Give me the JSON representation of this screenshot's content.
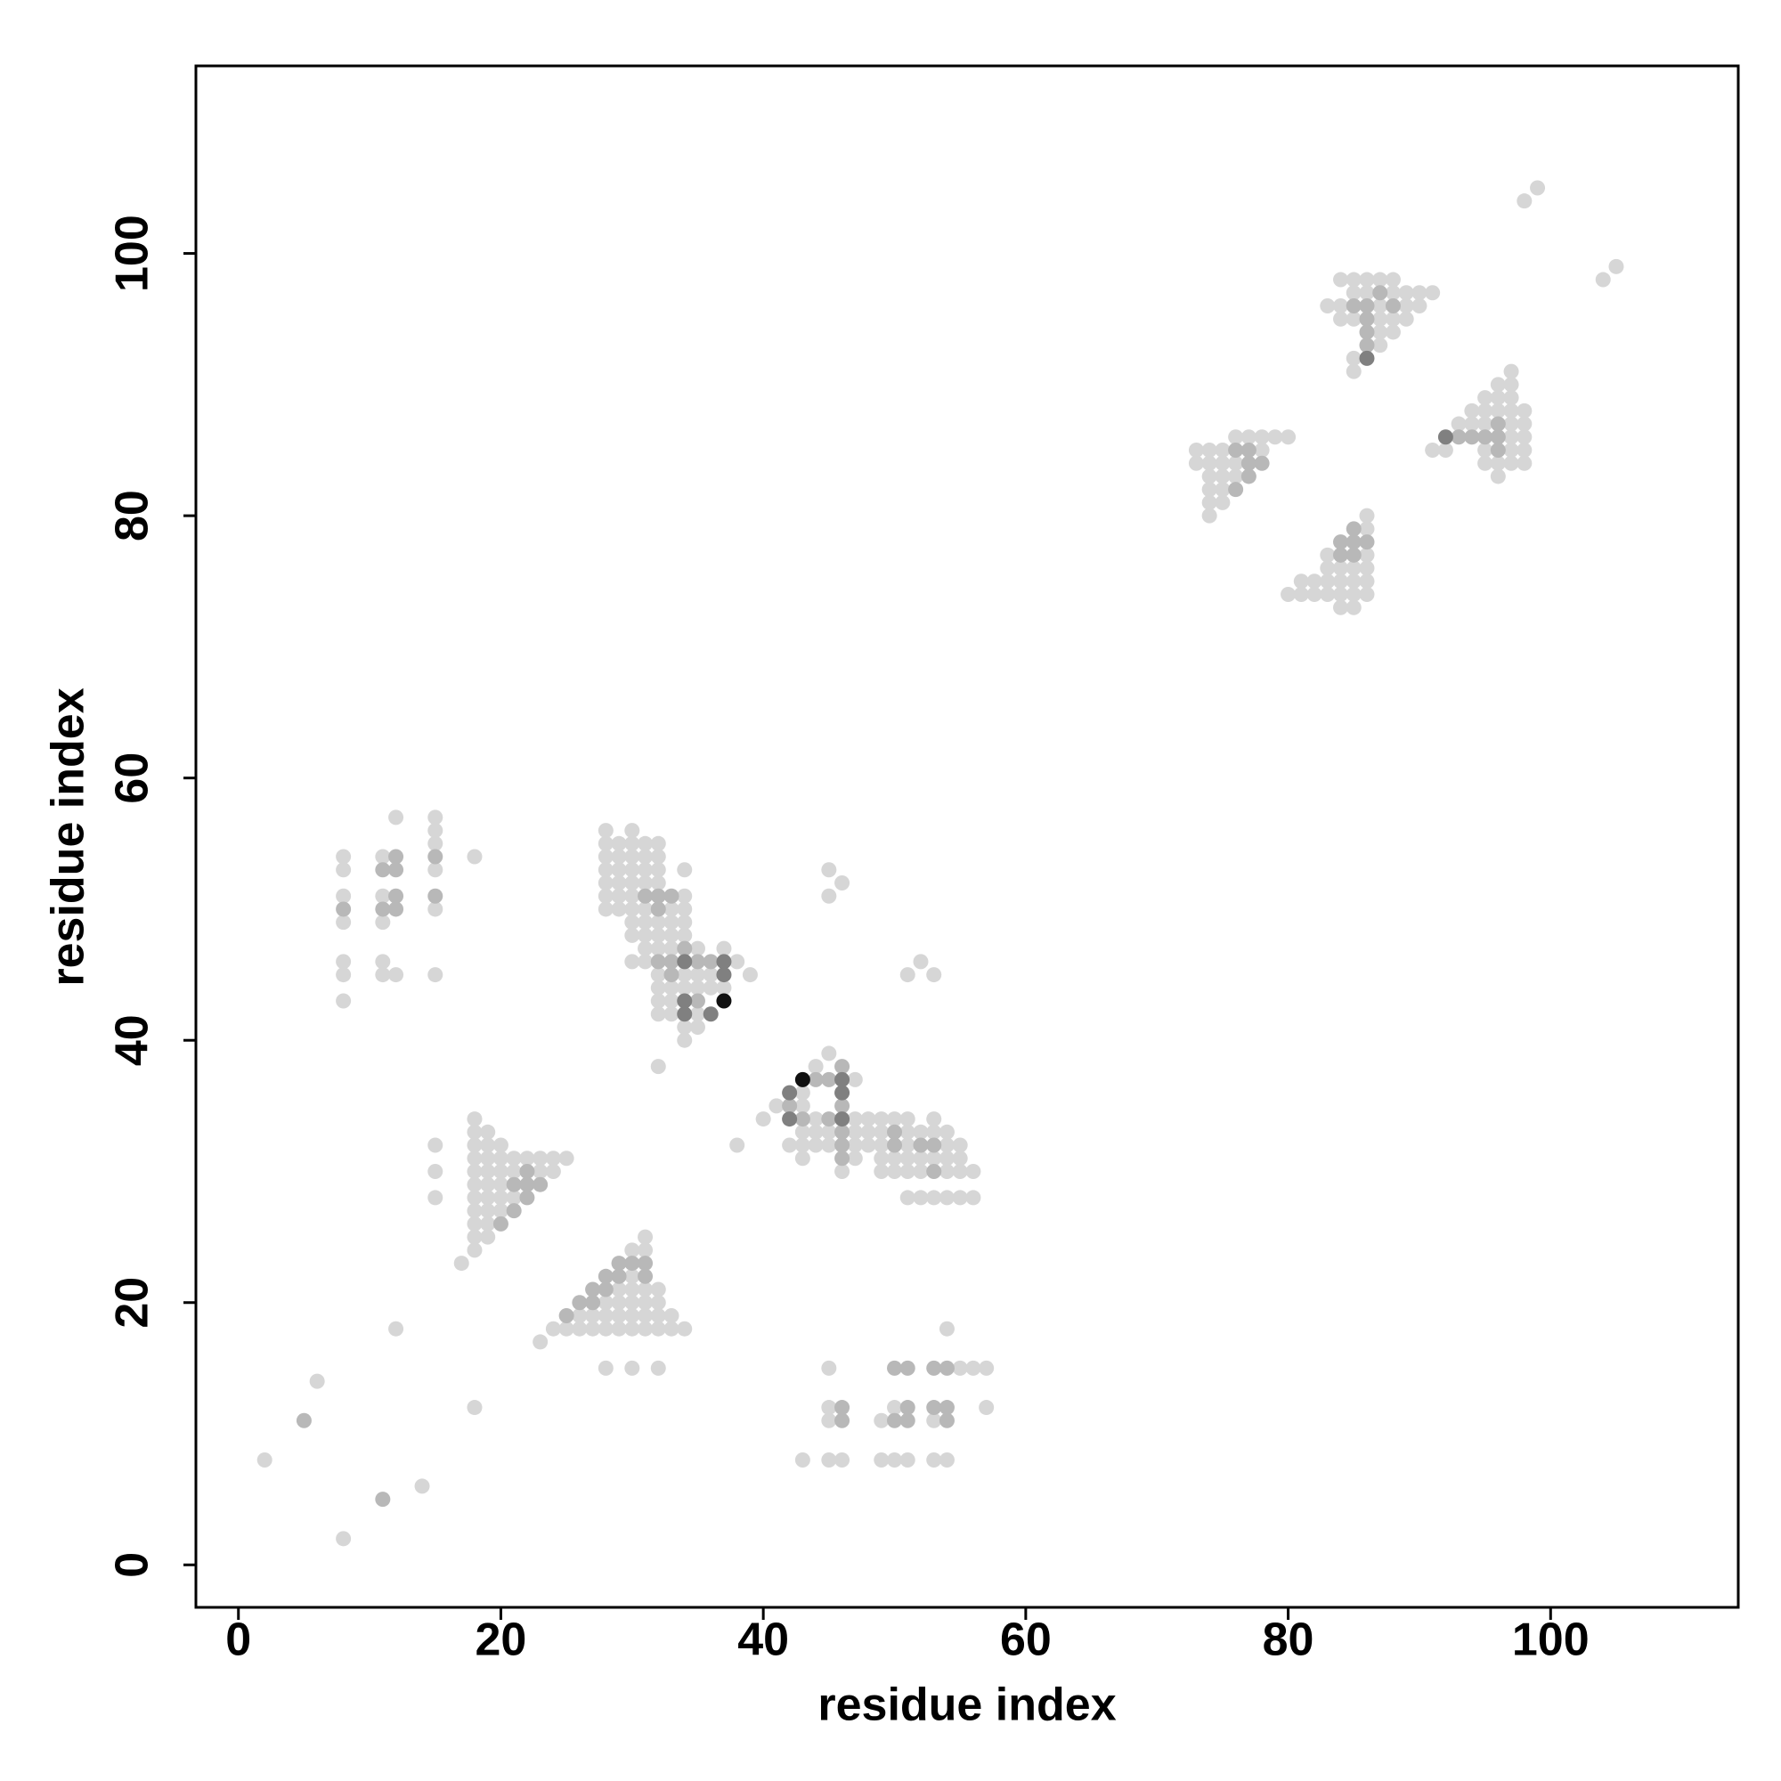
{
  "chart_data": {
    "type": "scatter",
    "x_label": "residue index",
    "y_label": "residue index",
    "xlim": [
      -3.24,
      114.3
    ],
    "ylim": [
      -3.24,
      114.3
    ],
    "xticks": [
      0,
      20,
      40,
      60,
      80,
      100
    ],
    "yticks": [
      0,
      20,
      40,
      60,
      80,
      100
    ],
    "series": [
      {
        "color": "#d6d6d6",
        "x": [
          2,
          6,
          8,
          14,
          12,
          18,
          17,
          23,
          38,
          32,
          98,
          99,
          104,
          105,
          45,
          45,
          46,
          52,
          51,
          53,
          54,
          39
        ],
        "y": [
          8,
          14,
          2,
          6,
          18,
          12,
          23,
          17,
          32,
          38,
          104,
          105,
          98,
          99,
          53,
          51,
          52,
          46,
          45,
          45,
          18,
          45
        ]
      },
      {
        "color": "#d6d6d6",
        "x": [
          18,
          18,
          18,
          18,
          18,
          18,
          18,
          18,
          18,
          18,
          18,
          19,
          19,
          19,
          19,
          19,
          19,
          19,
          19,
          19,
          20,
          20,
          20,
          20,
          20,
          20,
          21,
          21,
          21,
          22,
          23,
          23,
          24,
          24,
          25,
          15,
          15,
          15
        ],
        "y": [
          24,
          25,
          26,
          27,
          28,
          29,
          30,
          31,
          32,
          33,
          34,
          25,
          26,
          27,
          28,
          29,
          30,
          31,
          32,
          33,
          27,
          28,
          29,
          30,
          31,
          32,
          28,
          30,
          31,
          31,
          30,
          31,
          30,
          31,
          31,
          28,
          30,
          32
        ]
      },
      {
        "color": "#d6d6d6",
        "x": [
          24,
          25,
          26,
          27,
          28,
          29,
          30,
          31,
          32,
          33,
          34,
          26,
          27,
          28,
          29,
          30,
          31,
          32,
          33,
          28,
          29,
          30,
          31,
          32,
          29,
          30,
          31,
          32,
          30,
          30,
          31,
          31,
          28,
          30,
          32
        ],
        "y": [
          18,
          18,
          18,
          18,
          18,
          18,
          18,
          18,
          18,
          18,
          18,
          19,
          19,
          19,
          19,
          19,
          19,
          19,
          19,
          20,
          20,
          20,
          20,
          20,
          21,
          21,
          21,
          21,
          22,
          24,
          24,
          25,
          15,
          15,
          15
        ]
      },
      {
        "color": "#d6d6d6",
        "x": [
          8,
          8,
          8,
          8,
          8,
          8,
          8,
          11,
          11,
          11,
          11,
          11,
          12,
          12,
          15,
          15,
          15,
          15,
          15,
          15,
          18
        ],
        "y": [
          43,
          45,
          46,
          49,
          51,
          53,
          54,
          45,
          46,
          49,
          51,
          54,
          45,
          57,
          45,
          50,
          53,
          55,
          56,
          57,
          54
        ]
      },
      {
        "color": "#d6d6d6",
        "x": [
          28,
          28,
          28,
          28,
          28,
          28,
          28,
          29,
          29,
          29,
          29,
          29,
          29,
          30,
          30,
          30,
          30,
          30,
          30,
          30,
          30,
          30,
          30,
          31,
          31,
          31,
          31,
          31,
          31,
          31,
          31,
          31,
          32,
          32,
          32,
          32,
          32,
          32,
          32,
          32,
          32,
          32,
          32,
          33,
          33,
          33,
          33,
          33,
          33,
          33,
          34,
          34,
          34,
          34,
          34,
          34,
          34,
          34,
          34,
          35,
          35,
          35,
          35,
          35,
          36,
          36,
          37,
          37,
          38
        ],
        "y": [
          50,
          51,
          52,
          53,
          54,
          55,
          56,
          50,
          51,
          52,
          53,
          54,
          55,
          46,
          48,
          49,
          50,
          51,
          52,
          53,
          54,
          55,
          56,
          46,
          47,
          48,
          49,
          50,
          52,
          53,
          54,
          55,
          42,
          43,
          44,
          45,
          47,
          48,
          49,
          52,
          53,
          54,
          55,
          42,
          43,
          44,
          47,
          48,
          49,
          50,
          40,
          41,
          44,
          45,
          48,
          49,
          50,
          51,
          53,
          41,
          42,
          44,
          45,
          47,
          44,
          45,
          44,
          47,
          46
        ]
      },
      {
        "color": "#d6d6d6",
        "x": [
          45,
          44,
          47,
          43,
          41,
          43,
          40,
          44,
          47,
          48,
          49,
          50,
          51,
          53,
          43,
          44,
          45,
          47,
          48,
          49,
          51,
          52,
          53,
          54,
          42,
          43,
          44,
          45,
          47,
          48,
          49,
          51,
          54,
          55,
          43,
          47,
          49,
          50,
          51,
          52,
          53,
          54,
          55,
          46,
          49,
          50,
          51,
          52,
          54,
          55,
          56,
          51,
          52,
          53,
          54,
          55,
          56
        ],
        "y": [
          39,
          38,
          37,
          36,
          35,
          35,
          34,
          34,
          34,
          34,
          34,
          34,
          34,
          34,
          33,
          33,
          33,
          33,
          33,
          33,
          33,
          33,
          33,
          33,
          32,
          32,
          32,
          32,
          32,
          32,
          32,
          32,
          32,
          32,
          31,
          31,
          31,
          31,
          31,
          31,
          31,
          31,
          31,
          30,
          30,
          30,
          30,
          30,
          30,
          30,
          30,
          28,
          28,
          28,
          28,
          28,
          28
        ]
      },
      {
        "color": "#d6d6d6",
        "x": [
          45,
          55,
          56,
          57,
          45,
          50,
          57,
          45,
          49,
          53,
          43,
          45,
          46,
          49,
          50,
          51,
          53,
          54
        ],
        "y": [
          15,
          15,
          15,
          15,
          12,
          12,
          12,
          11,
          11,
          11,
          8,
          8,
          8,
          8,
          8,
          8,
          8,
          8
        ]
      },
      {
        "color": "#d6d6d6",
        "x": [
          76,
          77,
          78,
          79,
          80,
          73,
          74,
          75,
          78,
          73,
          74,
          75,
          76,
          74,
          75,
          76,
          74,
          75,
          74,
          75,
          74
        ],
        "y": [
          86,
          86,
          86,
          86,
          86,
          85,
          85,
          85,
          85,
          84,
          84,
          84,
          84,
          83,
          83,
          83,
          82,
          82,
          81,
          81,
          80
        ]
      },
      {
        "color": "#d6d6d6",
        "x": [
          86,
          86,
          86,
          86,
          86,
          86,
          85,
          85,
          85,
          85,
          84,
          84,
          84,
          84,
          83,
          83,
          83,
          83,
          82,
          82,
          81,
          81,
          80
        ],
        "y": [
          74,
          75,
          76,
          77,
          79,
          80,
          73,
          74,
          75,
          76,
          73,
          74,
          75,
          76,
          74,
          75,
          76,
          77,
          74,
          75,
          74,
          75,
          74
        ]
      },
      {
        "color": "#d6d6d6",
        "x": [
          84,
          85,
          86,
          87,
          88,
          85,
          86,
          88,
          89,
          90,
          91,
          83,
          84,
          87,
          89,
          90,
          84,
          85,
          87,
          88,
          89,
          87,
          88,
          87,
          85,
          85
        ],
        "y": [
          98,
          98,
          98,
          98,
          98,
          97,
          97,
          97,
          97,
          97,
          97,
          96,
          96,
          96,
          96,
          96,
          95,
          95,
          95,
          95,
          95,
          94,
          94,
          93,
          92,
          91
        ]
      },
      {
        "color": "#d6d6d6",
        "x": [
          96,
          96,
          96,
          96,
          96,
          97,
          97,
          97,
          97,
          97,
          97,
          97,
          97,
          98,
          98,
          98,
          98,
          98,
          95,
          95,
          95,
          95,
          95,
          94,
          94,
          93,
          92,
          91
        ],
        "y": [
          83,
          84,
          88,
          89,
          90,
          84,
          85,
          86,
          87,
          88,
          89,
          90,
          91,
          84,
          85,
          86,
          87,
          88,
          84,
          85,
          87,
          88,
          89,
          87,
          88,
          87,
          85,
          85
        ]
      },
      {
        "color": "#b8b8b8",
        "x": [
          5,
          11,
          22,
          22,
          22,
          23,
          20,
          21,
          21,
          25,
          26,
          27,
          27,
          28,
          28,
          29,
          31,
          29,
          30,
          31,
          8,
          11,
          11,
          12,
          12,
          12,
          12,
          15,
          15,
          31,
          32,
          32,
          32,
          33,
          33,
          33,
          35,
          35,
          36,
          34,
          42,
          43,
          45,
          46,
          46,
          46,
          44,
          45,
          50,
          50,
          52,
          53,
          53,
          46,
          46,
          50,
          51,
          53,
          54,
          46,
          51,
          53,
          54,
          46,
          50,
          51,
          54,
          76,
          77,
          77,
          78,
          77,
          76,
          86,
          85,
          85,
          85,
          84,
          84,
          85,
          86,
          88,
          86,
          86,
          86,
          87,
          96,
          96,
          96,
          95,
          94,
          93
        ],
        "y": [
          11,
          5,
          28,
          29,
          30,
          29,
          26,
          27,
          29,
          19,
          20,
          20,
          21,
          21,
          22,
          22,
          22,
          23,
          23,
          23,
          50,
          50,
          53,
          50,
          51,
          53,
          54,
          51,
          54,
          51,
          46,
          50,
          51,
          45,
          46,
          51,
          46,
          43,
          46,
          47,
          35,
          34,
          34,
          38,
          33,
          32,
          37,
          37,
          33,
          32,
          32,
          32,
          30,
          35,
          31,
          15,
          15,
          15,
          15,
          12,
          12,
          12,
          12,
          11,
          11,
          11,
          11,
          85,
          85,
          84,
          84,
          83,
          82,
          78,
          77,
          78,
          79,
          77,
          78,
          96,
          96,
          96,
          95,
          94,
          93,
          97,
          85,
          86,
          87,
          86,
          86,
          86
        ]
      },
      {
        "color": "#808080",
        "x": [
          34,
          34,
          34,
          36,
          37,
          37,
          42,
          42,
          46,
          46,
          46,
          86,
          92
        ],
        "y": [
          46,
          43,
          42,
          42,
          46,
          45,
          36,
          34,
          37,
          34,
          36,
          92,
          86
        ]
      },
      {
        "color": "#111111",
        "x": [
          37,
          43
        ],
        "y": [
          43,
          37
        ]
      }
    ]
  }
}
